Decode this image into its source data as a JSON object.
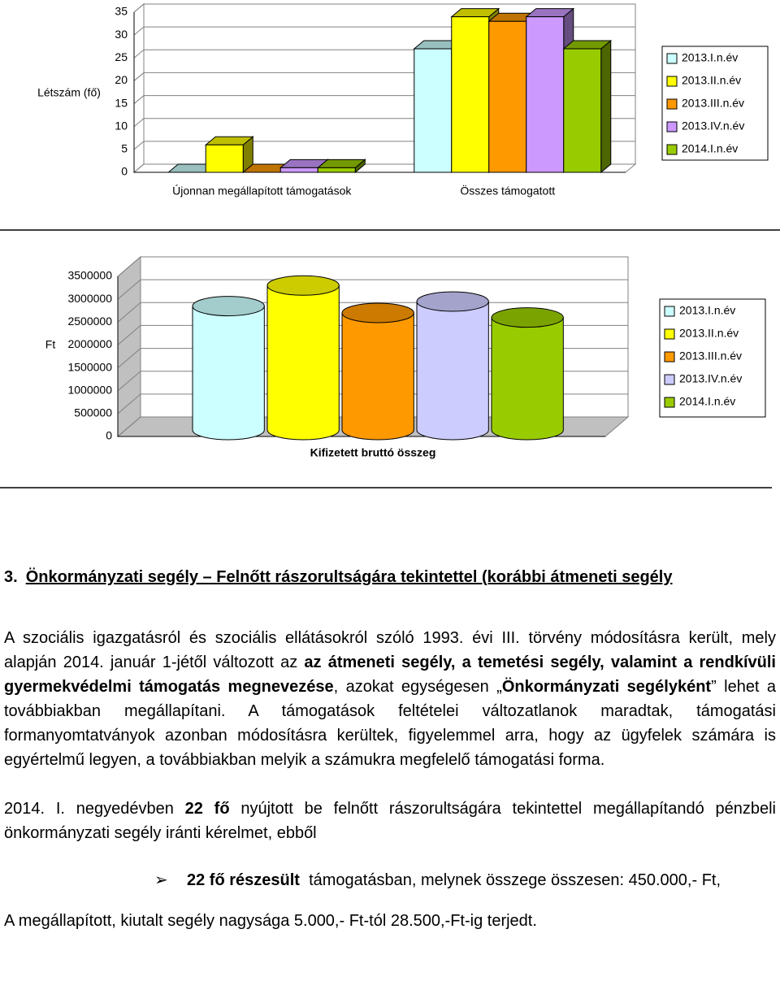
{
  "chart_data": [
    {
      "type": "bar",
      "ylabel": "Létszám (fő)",
      "categories": [
        "Újonnan megállapított támogatások",
        "Összes támogatott"
      ],
      "series": [
        {
          "name": "2013.I.n.év",
          "color": "#ccffff",
          "values": [
            0,
            27
          ]
        },
        {
          "name": "2013.II.n.év",
          "color": "#ffff00",
          "values": [
            6,
            34
          ]
        },
        {
          "name": "2013.III.n.év",
          "color": "#ff9900",
          "values": [
            0,
            33
          ]
        },
        {
          "name": "2013.IV.n.év",
          "color": "#cc99ff",
          "values": [
            1,
            34
          ]
        },
        {
          "name": "2014.I.n.év",
          "color": "#99cc00",
          "values": [
            1,
            27
          ]
        }
      ],
      "ylim": [
        0,
        35
      ],
      "yticks": [
        0,
        5,
        10,
        15,
        20,
        25,
        30,
        35
      ],
      "legend": "right"
    },
    {
      "type": "bar",
      "ylabel": "Ft",
      "categories": [
        "Kifizetett bruttó összeg"
      ],
      "series": [
        {
          "name": "2013.I.n.év",
          "color": "#ccffff",
          "values": [
            2850000
          ]
        },
        {
          "name": "2013.II.n.év",
          "color": "#ffff00",
          "values": [
            3300000
          ]
        },
        {
          "name": "2013.III.n.év",
          "color": "#ff9900",
          "values": [
            2700000
          ]
        },
        {
          "name": "2013.IV.n.év",
          "color": "#ccccff",
          "values": [
            2950000
          ]
        },
        {
          "name": "2014.I.n.év",
          "color": "#99cc00",
          "values": [
            2600000
          ]
        }
      ],
      "ylim": [
        0,
        3500000
      ],
      "yticks": [
        0,
        500000,
        1000000,
        1500000,
        2000000,
        2500000,
        3000000,
        3500000
      ],
      "legend": "right"
    }
  ],
  "document": {
    "heading": {
      "number": "3.",
      "text": "Önkormányzati segély – Felnőtt rászorultságára tekintettel (korábbi átmeneti segély"
    },
    "paragraphs": [
      [
        {
          "text": "A szociális igazgatásról és szociális ellátásokról szóló 1993. évi III. törvény módosításra került, mely alapján 2014. január 1-jétől változott az ",
          "bold": false
        },
        {
          "text": "az átmeneti segély, a temetési segély, valamint a rendkívüli gyermekvédelmi támogatás megnevezése",
          "bold": true
        },
        {
          "text": ", azokat egységesen „",
          "bold": false
        },
        {
          "text": "Önkormányzati segélyként",
          "bold": true
        },
        {
          "text": "” lehet a továbbiakban megállapítani. A támogatások feltételei változatlanok maradtak, támogatási formanyomtatványok azonban módosításra kerültek, figyelemmel arra, hogy az ügyfelek számára is egyértelmű legyen, a továbbiakban melyik a számukra megfelelő támogatási forma.",
          "bold": false
        }
      ],
      [
        {
          "text": "2014. I. negyedévben ",
          "bold": false
        },
        {
          "text": "22 fő",
          "bold": true
        },
        {
          "text": " nyújtott be felnőtt rászorultságára tekintettel megállapítandó pénzbeli önkormányzati segély iránti kérelmet, ebből",
          "bold": false
        }
      ]
    ],
    "bullet": [
      {
        "text": "22 fő részesült",
        "bold": true
      },
      {
        "text": "  támogatásban, melynek összege összesen: 450.000,- Ft,",
        "bold": false
      }
    ],
    "closing": "A megállapított, kiutalt segély nagysága 5.000,- Ft-tól 28.500,-Ft-ig terjedt."
  }
}
